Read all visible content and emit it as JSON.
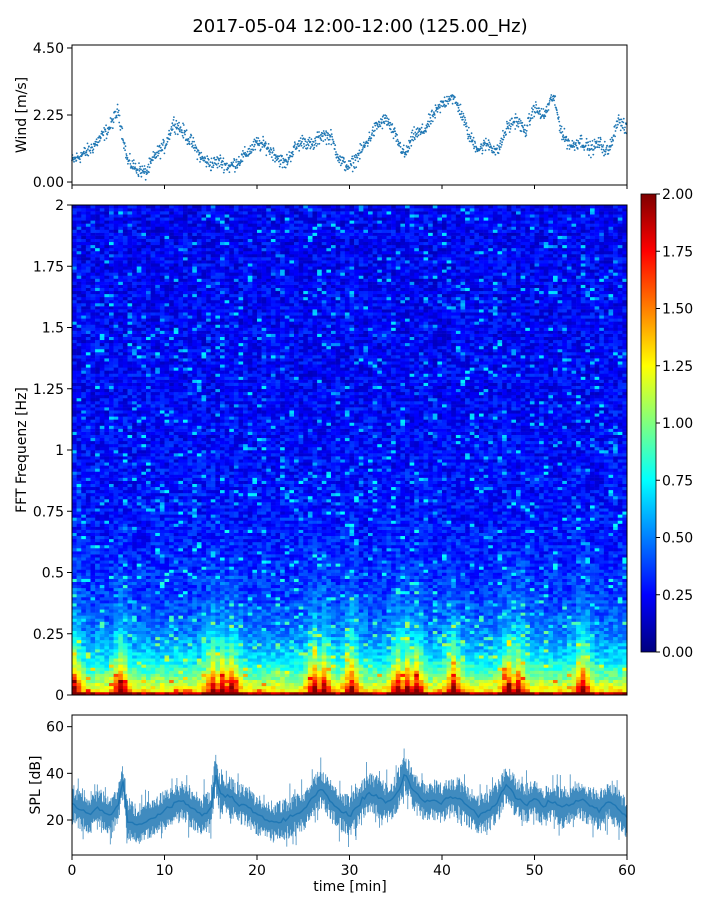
{
  "figure": {
    "title": "2017-05-04 12:00-12:00 (125.00_Hz)"
  },
  "colors": {
    "series": "#1f77b4",
    "jet": [
      "#00007f",
      "#0000ff",
      "#007fff",
      "#00ffff",
      "#7fff7f",
      "#ffff00",
      "#ff7f00",
      "#ff0000",
      "#7f0000"
    ]
  },
  "chart_data": [
    {
      "name": "wind",
      "type": "scatter",
      "ylabel": "Wind [m/s]",
      "xlim": [
        0,
        60
      ],
      "ylim": [
        0,
        4.5
      ],
      "yticks": [
        0.0,
        2.25,
        4.5
      ],
      "ytick_labels": [
        "0.00",
        "2.25",
        "4.50"
      ],
      "grid": false,
      "series": [
        {
          "x": [
            0,
            2,
            4,
            5,
            6,
            7,
            8,
            9,
            10,
            11,
            12,
            13,
            14,
            15,
            16,
            17,
            18,
            19,
            20,
            21,
            22,
            23,
            24,
            25,
            26,
            27,
            28,
            29,
            30,
            31,
            32,
            33,
            34,
            35,
            36,
            37,
            38,
            39,
            40,
            41,
            42,
            43,
            44,
            45,
            46,
            47,
            48,
            49,
            50,
            51,
            52,
            53,
            54,
            55,
            56,
            57,
            58,
            59,
            60
          ],
          "y": [
            0.7,
            1.1,
            1.8,
            2.4,
            0.7,
            0.45,
            0.3,
            0.9,
            1.2,
            2.0,
            1.7,
            1.3,
            0.8,
            0.6,
            0.7,
            0.5,
            0.7,
            1.0,
            1.3,
            1.2,
            0.9,
            0.6,
            1.1,
            1.4,
            1.2,
            1.6,
            1.5,
            0.7,
            0.5,
            0.9,
            1.4,
            1.9,
            2.1,
            1.5,
            0.9,
            1.6,
            1.7,
            2.2,
            2.6,
            2.9,
            2.4,
            1.5,
            1.1,
            1.3,
            1.0,
            1.8,
            2.1,
            1.7,
            2.5,
            2.2,
            2.9,
            1.6,
            1.2,
            1.4,
            1.1,
            1.3,
            1.0,
            2.1,
            1.7
          ]
        }
      ]
    },
    {
      "name": "spectrogram",
      "type": "heatmap",
      "ylabel": "FFT Frequenz [Hz]",
      "xlim": [
        0,
        60
      ],
      "ylim": [
        0,
        2
      ],
      "yticks": [
        0,
        0.25,
        0.5,
        0.75,
        1,
        1.25,
        1.5,
        1.75,
        2
      ],
      "ytick_labels": [
        "0",
        "0.25",
        "0.5",
        "0.75",
        "1",
        "1.25",
        "1.5",
        "1.75",
        "2"
      ],
      "colorbar": {
        "range": [
          0,
          2
        ],
        "ticks": [
          0.0,
          0.25,
          0.5,
          0.75,
          1.0,
          1.25,
          1.5,
          1.75,
          2.0
        ],
        "tick_labels": [
          "0.00",
          "0.25",
          "0.50",
          "0.75",
          "1.00",
          "1.25",
          "1.50",
          "1.75",
          "2.00"
        ]
      },
      "high_energy_minutes": [
        0,
        5,
        15,
        16,
        17,
        26,
        27,
        30,
        35,
        36,
        37,
        41,
        47,
        48,
        55
      ]
    },
    {
      "name": "spl",
      "type": "line",
      "ylabel": "SPL [dB]",
      "xlabel": "time [min]",
      "xlim": [
        0,
        60
      ],
      "ylim": [
        5,
        65
      ],
      "yticks": [
        20,
        40,
        60
      ],
      "ytick_labels": [
        "20",
        "40",
        "60"
      ],
      "xticks": [
        0,
        10,
        20,
        30,
        40,
        50,
        60
      ],
      "xtick_labels": [
        "0",
        "10",
        "20",
        "30",
        "40",
        "50",
        "60"
      ],
      "grid": false,
      "series": [
        {
          "x": [
            0,
            1,
            2,
            3,
            4,
            5,
            5.5,
            6,
            7,
            8,
            9,
            10,
            11,
            12,
            13,
            14,
            15,
            15.5,
            16,
            17,
            18,
            19,
            20,
            21,
            22,
            23,
            24,
            25,
            26,
            27,
            28,
            29,
            30,
            31,
            32,
            33,
            34,
            35,
            36,
            37,
            38,
            39,
            40,
            41,
            42,
            43,
            44,
            45,
            46,
            47,
            48,
            49,
            50,
            51,
            52,
            53,
            54,
            55,
            56,
            57,
            58,
            59,
            60
          ],
          "y": [
            27,
            24,
            23,
            25,
            22,
            26,
            38,
            20,
            18,
            19,
            21,
            24,
            27,
            28,
            25,
            22,
            24,
            40,
            32,
            30,
            27,
            26,
            22,
            20,
            19,
            20,
            22,
            24,
            30,
            34,
            28,
            24,
            22,
            26,
            32,
            30,
            27,
            30,
            40,
            32,
            28,
            29,
            27,
            30,
            29,
            25,
            22,
            24,
            28,
            36,
            30,
            27,
            29,
            26,
            28,
            25,
            27,
            29,
            26,
            24,
            28,
            25,
            21
          ]
        }
      ]
    }
  ]
}
